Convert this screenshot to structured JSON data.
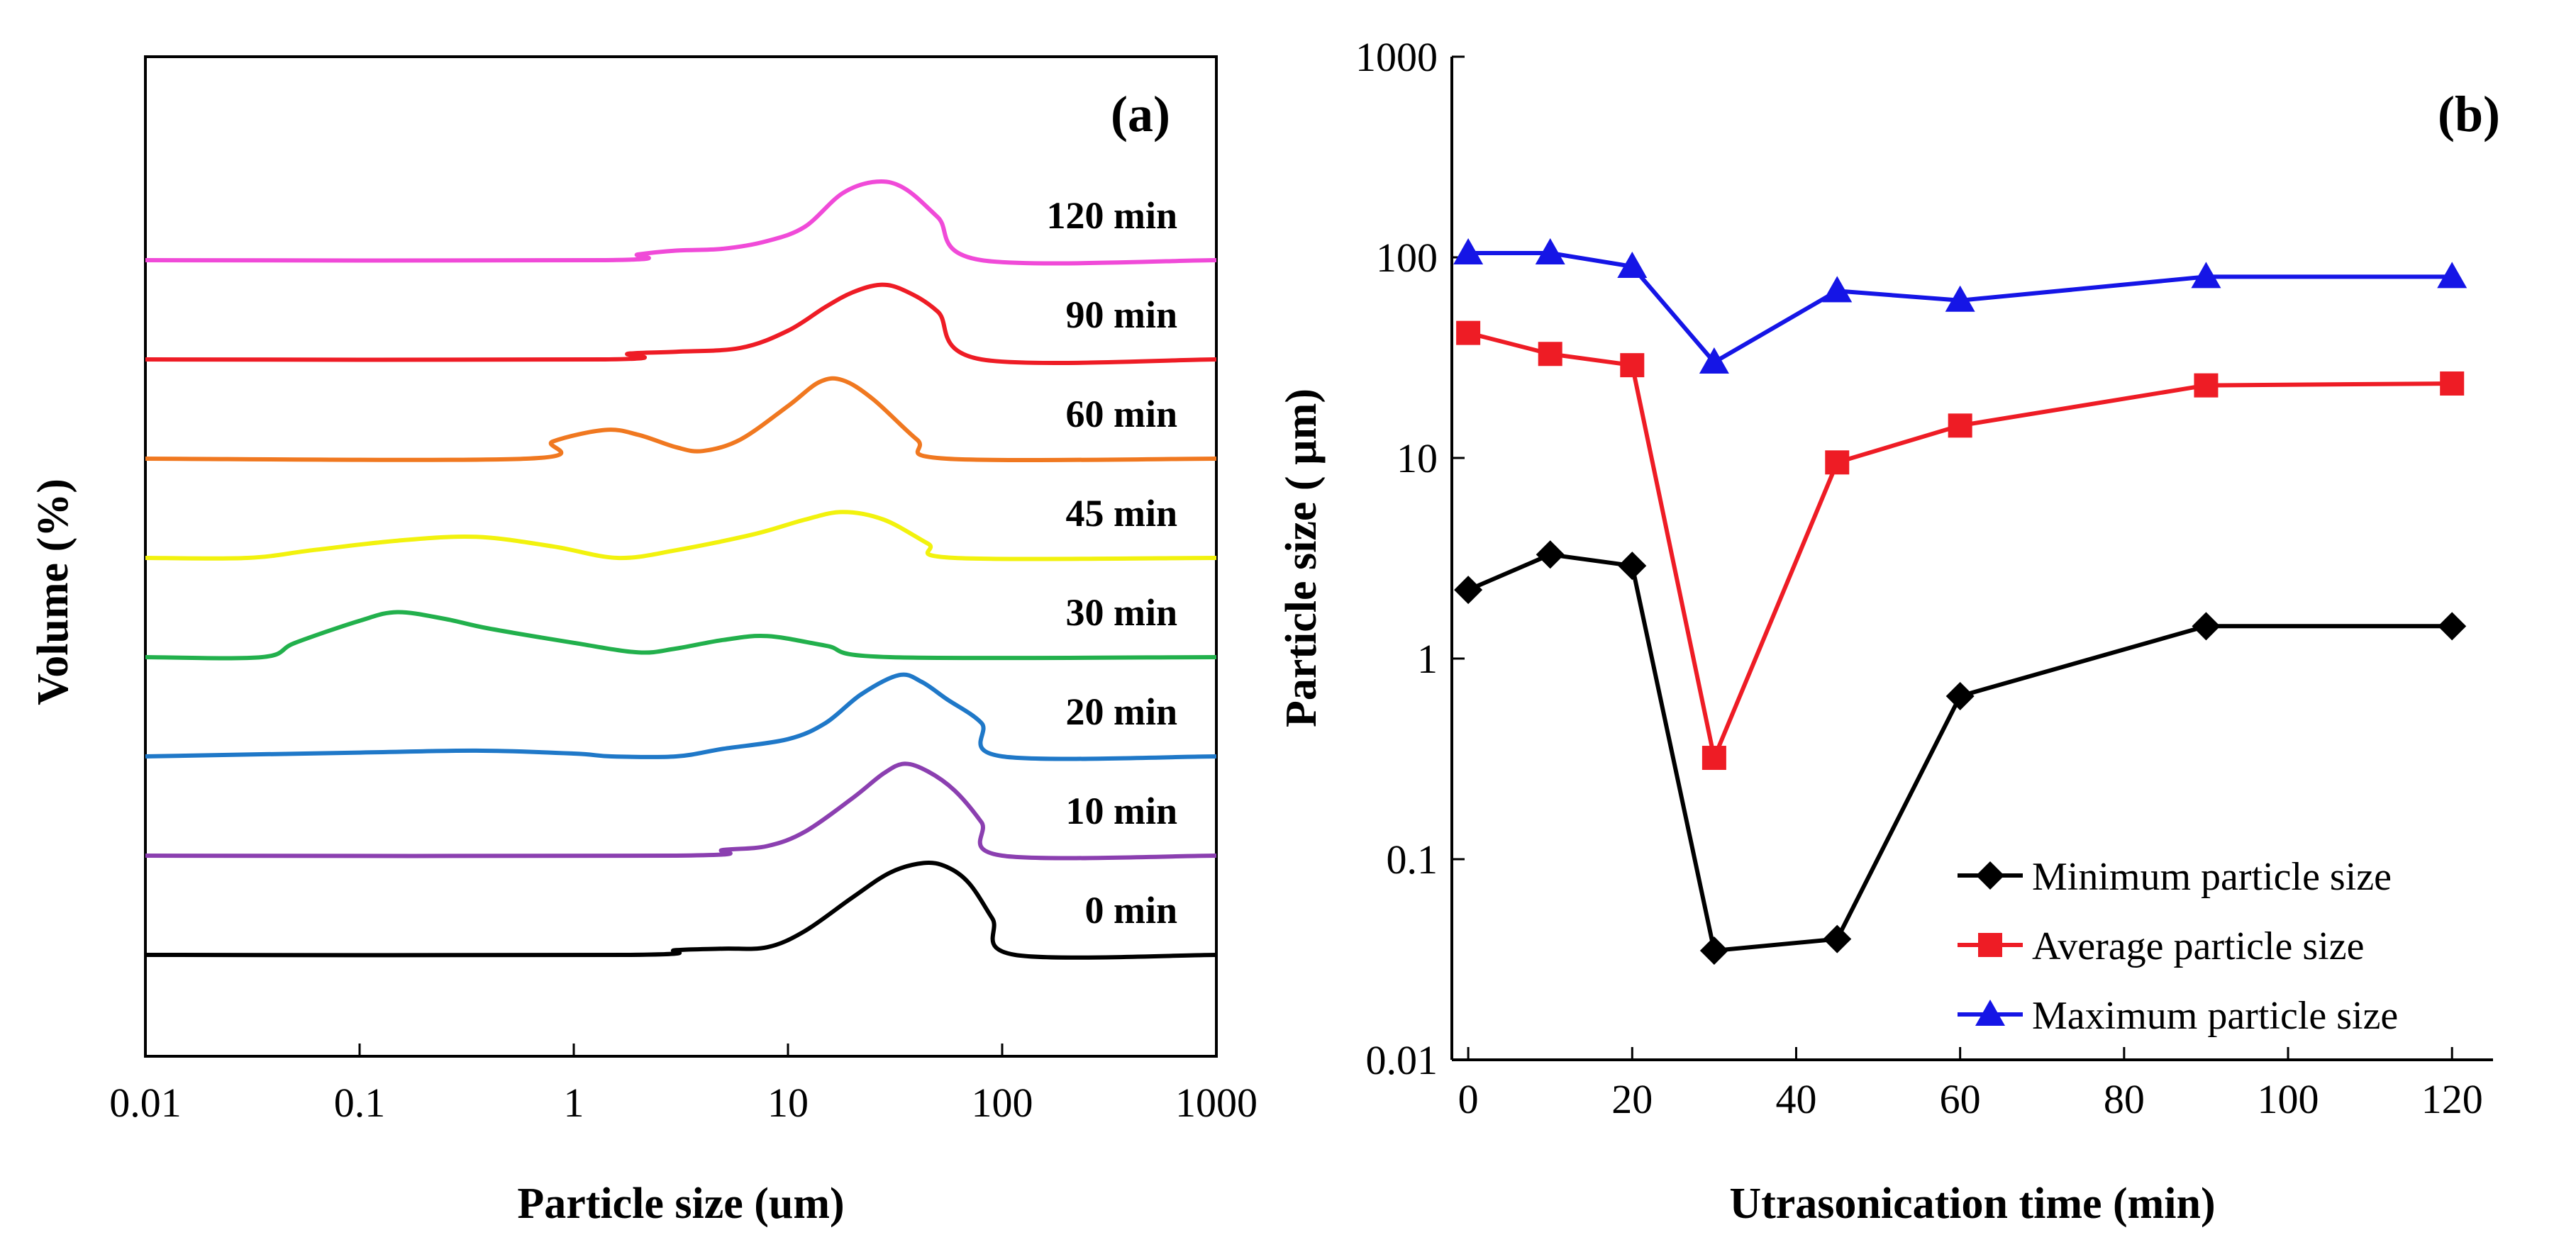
{
  "chart_data": [
    {
      "type": "line",
      "panel_label": "(a)",
      "xlabel": "Particle size (um)",
      "ylabel": "Volume (%)",
      "xscale": "log",
      "xlim": [
        0.01,
        1000
      ],
      "xticks": [
        {
          "value": 0.01,
          "label": "0.01"
        },
        {
          "value": 0.1,
          "label": "0.1"
        },
        {
          "value": 1,
          "label": "1"
        },
        {
          "value": 10,
          "label": "10"
        },
        {
          "value": 100,
          "label": "100"
        },
        {
          "value": 1000,
          "label": "1000"
        }
      ],
      "baseline_spacing": 100,
      "series": [
        {
          "name": "0 min",
          "label": "0 min",
          "color": "#000000",
          "points": [
            [
              0.01,
              0
            ],
            [
              1.8,
              0
            ],
            [
              3,
              5
            ],
            [
              5,
              6.5
            ],
            [
              8,
              8
            ],
            [
              12,
              25
            ],
            [
              20,
              60
            ],
            [
              30,
              86
            ],
            [
              43,
              96
            ],
            [
              55,
              92
            ],
            [
              70,
              75
            ],
            [
              90,
              38
            ],
            [
              115,
              0
            ],
            [
              1000,
              0
            ]
          ]
        },
        {
          "name": "10 min",
          "label": "10 min",
          "color": "#8B3FB0",
          "points": [
            [
              0.01,
              0
            ],
            [
              3,
              0
            ],
            [
              5,
              6
            ],
            [
              8,
              10
            ],
            [
              12,
              25
            ],
            [
              20,
              60
            ],
            [
              28,
              86
            ],
            [
              35,
              96
            ],
            [
              45,
              88
            ],
            [
              60,
              68
            ],
            [
              80,
              35
            ],
            [
              100,
              0
            ],
            [
              1000,
              0
            ]
          ]
        },
        {
          "name": "20 min",
          "label": "20 min",
          "color": "#1F78C8",
          "points": [
            [
              0.01,
              0
            ],
            [
              0.1,
              4
            ],
            [
              0.35,
              6
            ],
            [
              1,
              3
            ],
            [
              1.5,
              0
            ],
            [
              3,
              0
            ],
            [
              5,
              8
            ],
            [
              10,
              18
            ],
            [
              15,
              35
            ],
            [
              22,
              65
            ],
            [
              33,
              85
            ],
            [
              42,
              78
            ],
            [
              55,
              60
            ],
            [
              80,
              35
            ],
            [
              100,
              0
            ],
            [
              1000,
              0
            ]
          ]
        },
        {
          "name": "30 min",
          "label": "30 min",
          "color": "#22B04C",
          "points": [
            [
              0.01,
              0
            ],
            [
              0.035,
              0
            ],
            [
              0.05,
              15
            ],
            [
              0.1,
              38
            ],
            [
              0.15,
              47
            ],
            [
              0.25,
              40
            ],
            [
              0.4,
              30
            ],
            [
              1,
              15
            ],
            [
              2,
              5
            ],
            [
              3,
              9
            ],
            [
              5,
              18
            ],
            [
              8,
              22
            ],
            [
              15,
              12
            ],
            [
              30,
              0
            ],
            [
              1000,
              0
            ]
          ]
        },
        {
          "name": "45 min",
          "label": "45 min",
          "color": "#F2F20D",
          "points": [
            [
              0.01,
              0
            ],
            [
              0.03,
              0
            ],
            [
              0.06,
              8
            ],
            [
              0.15,
              18
            ],
            [
              0.35,
              22
            ],
            [
              0.8,
              12
            ],
            [
              1.6,
              0
            ],
            [
              3,
              8
            ],
            [
              7,
              25
            ],
            [
              12,
              40
            ],
            [
              18,
              48
            ],
            [
              28,
              40
            ],
            [
              45,
              15
            ],
            [
              60,
              0
            ],
            [
              1000,
              0
            ]
          ]
        },
        {
          "name": "60 min",
          "label": "60 min",
          "color": "#F07820",
          "points": [
            [
              0.01,
              0
            ],
            [
              0.6,
              0
            ],
            [
              0.8,
              18
            ],
            [
              1.4,
              30
            ],
            [
              2,
              25
            ],
            [
              3,
              12
            ],
            [
              4,
              8
            ],
            [
              6,
              20
            ],
            [
              10,
              55
            ],
            [
              14,
              80
            ],
            [
              18,
              82
            ],
            [
              25,
              62
            ],
            [
              40,
              20
            ],
            [
              55,
              0
            ],
            [
              1000,
              0
            ]
          ]
        },
        {
          "name": "90 min",
          "label": "90 min",
          "color": "#EE1C25",
          "points": [
            [
              0.01,
              0
            ],
            [
              1.4,
              0
            ],
            [
              1.8,
              6
            ],
            [
              3,
              8
            ],
            [
              6,
              12
            ],
            [
              10,
              30
            ],
            [
              15,
              55
            ],
            [
              20,
              70
            ],
            [
              27,
              78
            ],
            [
              35,
              72
            ],
            [
              50,
              50
            ],
            [
              80,
              0
            ],
            [
              1000,
              0
            ]
          ]
        },
        {
          "name": "120 min",
          "label": "120 min",
          "color": "#F04AD8",
          "points": [
            [
              0.01,
              0
            ],
            [
              1.4,
              0
            ],
            [
              2,
              6
            ],
            [
              3,
              10
            ],
            [
              5,
              12
            ],
            [
              8,
              20
            ],
            [
              12,
              35
            ],
            [
              18,
              70
            ],
            [
              26,
              82
            ],
            [
              35,
              75
            ],
            [
              50,
              45
            ],
            [
              80,
              0
            ],
            [
              1000,
              0
            ]
          ]
        }
      ]
    },
    {
      "type": "line",
      "panel_label": "(b)",
      "xlabel": "Utrasonication time (min)",
      "ylabel": "Particle size ( µm)",
      "xlim": [
        -2,
        125
      ],
      "yscale": "log",
      "ylim": [
        0.01,
        1000
      ],
      "xticks": [
        {
          "value": 0,
          "label": "0"
        },
        {
          "value": 20,
          "label": "20"
        },
        {
          "value": 40,
          "label": "40"
        },
        {
          "value": 60,
          "label": "60"
        },
        {
          "value": 80,
          "label": "80"
        },
        {
          "value": 100,
          "label": "100"
        },
        {
          "value": 120,
          "label": "120"
        }
      ],
      "yticks": [
        {
          "value": 0.01,
          "label": "0.01"
        },
        {
          "value": 0.1,
          "label": "0.1"
        },
        {
          "value": 1,
          "label": "1"
        },
        {
          "value": 10,
          "label": "10"
        },
        {
          "value": 100,
          "label": "100"
        },
        {
          "value": 1000,
          "label": "1000"
        }
      ],
      "legend_position": "bottom-right",
      "x": [
        0,
        10,
        20,
        30,
        45,
        60,
        90,
        120
      ],
      "series": [
        {
          "name": "Minimum particle size",
          "color": "#000000",
          "marker": "diamond",
          "values": [
            2.2,
            3.3,
            2.9,
            0.035,
            0.04,
            0.65,
            1.45,
            1.45
          ]
        },
        {
          "name": "Average particle size",
          "color": "#EE1C25",
          "marker": "square",
          "values": [
            42,
            33,
            29,
            0.32,
            9.5,
            14.5,
            23,
            23.5
          ]
        },
        {
          "name": "Maximum particle size",
          "color": "#1515E6",
          "marker": "triangle",
          "values": [
            105,
            105,
            90,
            30,
            68,
            61,
            80,
            80
          ]
        }
      ]
    }
  ]
}
